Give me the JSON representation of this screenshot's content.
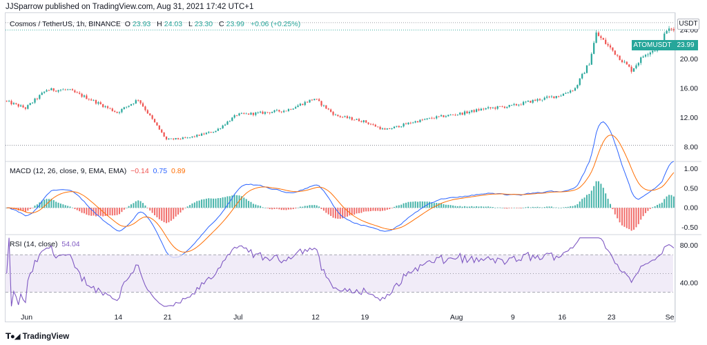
{
  "header": {
    "published": "JJSparrow published on TradingView.com, Aug 31, 2021 17:42 UTC+1"
  },
  "price_legend": {
    "symbol": "Cosmos / TetherUS, 1h, BINANCE",
    "o_label": "O",
    "o": "23.93",
    "h_label": "H",
    "h": "24.03",
    "l_label": "L",
    "l": "23.30",
    "c_label": "C",
    "c": "23.99",
    "change": "+0.06 (+0.25%)"
  },
  "currency": "USDT",
  "symbol_badge": "ATOMUSDT",
  "last_price": "23.99",
  "macd_legend": {
    "label": "MACD (12, 26, close, 9, EMA, EMA)",
    "hist": "−0.14",
    "macd": "0.75",
    "signal": "0.89"
  },
  "rsi_legend": {
    "label": "RSI (14, close)",
    "value": "54.04"
  },
  "footer": {
    "brand": "TradingView"
  },
  "colors": {
    "up": "#26a69a",
    "down": "#ef5350",
    "macd": "#2962ff",
    "signal": "#ff6d00",
    "rsi": "#7e57c2",
    "rsi_band": "#ede7f6"
  },
  "chart_data": [
    {
      "type": "candlestick",
      "title": "Cosmos / TetherUS, 1h, BINANCE",
      "x": [
        "2021-05-29",
        "2021-06-01",
        "2021-06-04",
        "2021-06-07",
        "2021-06-10",
        "2021-06-14",
        "2021-06-17",
        "2021-06-21",
        "2021-06-24",
        "2021-06-28",
        "2021-07-01",
        "2021-07-04",
        "2021-07-08",
        "2021-07-12",
        "2021-07-15",
        "2021-07-19",
        "2021-07-22",
        "2021-07-26",
        "2021-07-29",
        "2021-08-02",
        "2021-08-05",
        "2021-08-09",
        "2021-08-12",
        "2021-08-16",
        "2021-08-18",
        "2021-08-20",
        "2021-08-21",
        "2021-08-23",
        "2021-08-26",
        "2021-08-28",
        "2021-08-30",
        "2021-08-31"
      ],
      "y": [
        14.3,
        13.3,
        15.8,
        15.8,
        14.6,
        12.7,
        14.5,
        9.0,
        9.2,
        10.2,
        12.4,
        12.6,
        13.0,
        14.6,
        12.3,
        11.5,
        10.3,
        11.4,
        12.0,
        12.6,
        13.2,
        13.6,
        14.3,
        15.1,
        16.0,
        19.5,
        23.5,
        21.5,
        18.5,
        20.8,
        21.6,
        23.99
      ],
      "yaxis_ticks": [
        "8.00",
        "12.00",
        "16.00",
        "20.00",
        "24.00"
      ],
      "ylim": [
        6.2,
        26.2
      ],
      "xaxis_ticks": [
        "Jun",
        "14",
        "21",
        "Jul",
        "12",
        "19",
        "Aug",
        "9",
        "16",
        "23",
        "Se"
      ]
    },
    {
      "type": "line",
      "title": "MACD (12, 26, close, 9, EMA, EMA)",
      "yaxis_ticks": [
        "-0.50",
        "0.00",
        "0.50",
        "1.00"
      ],
      "ylim": [
        -0.65,
        1.15
      ],
      "values_last": {
        "histogram": -0.14,
        "macd": 0.75,
        "signal": 0.89
      }
    },
    {
      "type": "line",
      "title": "RSI (14, close)",
      "yaxis_ticks": [
        "40.00",
        "80.00"
      ],
      "ylim": [
        12,
        90
      ],
      "bands": [
        30,
        70
      ],
      "value_last": 54.04
    }
  ]
}
